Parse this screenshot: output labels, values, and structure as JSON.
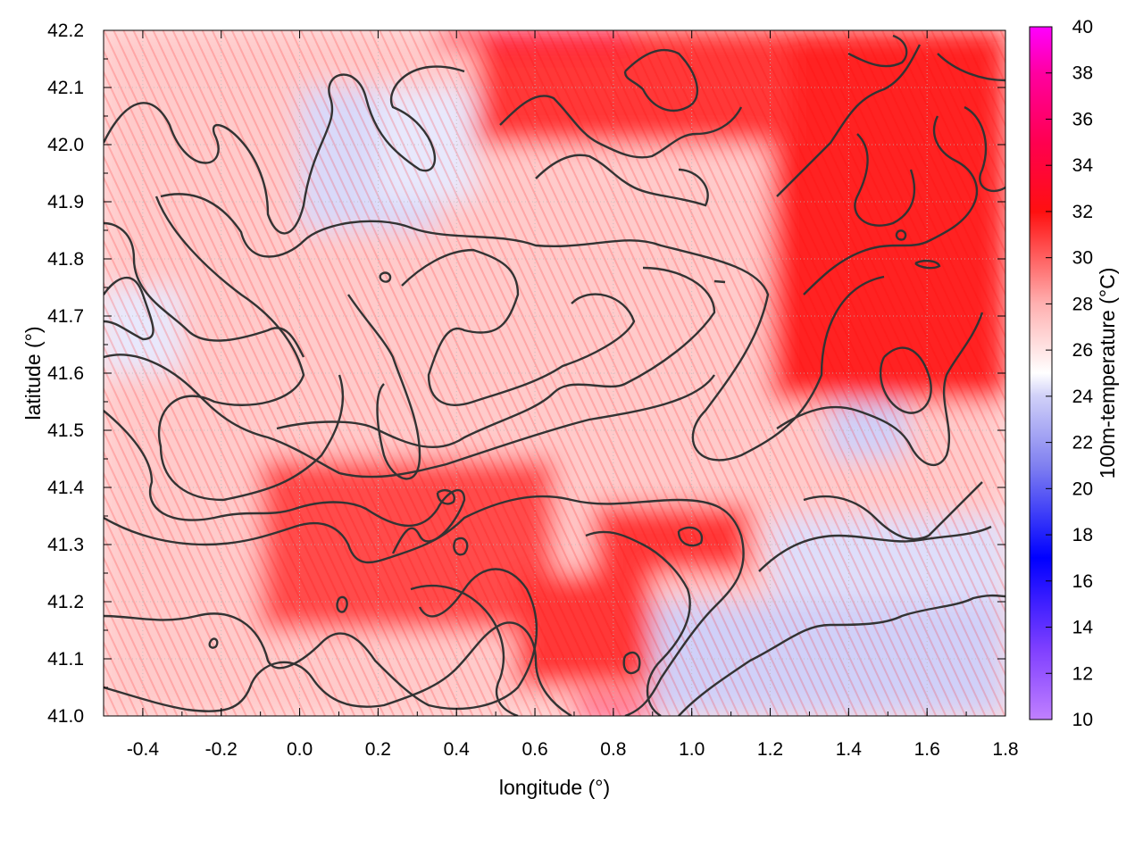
{
  "chart_data": {
    "type": "heatmap",
    "xlabel": "longitude (°)",
    "ylabel": "latitude (°)",
    "colorbar_label": "100m-temperature (°C)",
    "xlim": [
      -0.5,
      1.8
    ],
    "ylim": [
      41.0,
      42.2
    ],
    "x_ticks": [
      "-0.4",
      "-0.2",
      "0.0",
      "0.2",
      "0.4",
      "0.6",
      "0.8",
      "1.0",
      "1.2",
      "1.4",
      "1.6",
      "1.8"
    ],
    "x_tick_values": [
      -0.4,
      -0.2,
      0.0,
      0.2,
      0.4,
      0.6,
      0.8,
      1.0,
      1.2,
      1.4,
      1.6,
      1.8
    ],
    "y_ticks": [
      "41.0",
      "41.1",
      "41.2",
      "41.3",
      "41.4",
      "41.5",
      "41.6",
      "41.7",
      "41.8",
      "41.9",
      "42.0",
      "42.1",
      "42.2"
    ],
    "y_tick_values": [
      41.0,
      41.1,
      41.2,
      41.3,
      41.4,
      41.5,
      41.6,
      41.7,
      41.8,
      41.9,
      42.0,
      42.1,
      42.2
    ],
    "colorbar_ticks": [
      "10",
      "12",
      "14",
      "16",
      "18",
      "20",
      "22",
      "24",
      "26",
      "28",
      "30",
      "32",
      "34",
      "36",
      "38",
      "40"
    ],
    "colorbar_values": [
      10,
      12,
      14,
      16,
      18,
      20,
      22,
      24,
      26,
      28,
      30,
      32,
      34,
      36,
      38,
      40
    ],
    "colorbar_range": [
      10,
      40
    ],
    "grid": true,
    "colormap": [
      {
        "value": 10,
        "color": "#c080ff"
      },
      {
        "value": 13,
        "color": "#8040ff"
      },
      {
        "value": 17,
        "color": "#0000ff"
      },
      {
        "value": 21,
        "color": "#8080f0"
      },
      {
        "value": 24,
        "color": "#d0d0f8"
      },
      {
        "value": 25,
        "color": "#ffffff"
      },
      {
        "value": 28,
        "color": "#ffb0b0"
      },
      {
        "value": 32,
        "color": "#ff1010"
      },
      {
        "value": 35,
        "color": "#ff0050"
      },
      {
        "value": 38,
        "color": "#ff00a0"
      },
      {
        "value": 40,
        "color": "#ff00ff"
      }
    ],
    "field_regions": [
      {
        "lon": -0.5,
        "lat": 41.0,
        "w": 2.3,
        "h": 1.2,
        "temp": 27.0
      },
      {
        "lon": 0.9,
        "lat": 41.0,
        "w": 0.9,
        "h": 0.2,
        "temp": 24.0
      },
      {
        "lon": 1.2,
        "lat": 41.2,
        "w": 0.6,
        "h": 0.15,
        "temp": 24.3
      },
      {
        "lon": 1.2,
        "lat": 41.55,
        "w": 0.6,
        "h": 0.65,
        "temp": 31.5
      },
      {
        "lon": 0.45,
        "lat": 42.0,
        "w": 0.8,
        "h": 0.2,
        "temp": 31.0
      },
      {
        "lon": -0.1,
        "lat": 41.15,
        "w": 0.75,
        "h": 0.3,
        "temp": 30.5
      },
      {
        "lon": 0.55,
        "lat": 41.05,
        "w": 0.35,
        "h": 0.2,
        "temp": 31.0
      },
      {
        "lon": 0.75,
        "lat": 41.25,
        "w": 0.4,
        "h": 0.12,
        "temp": 31.0
      },
      {
        "lon": 0.0,
        "lat": 41.85,
        "w": 0.35,
        "h": 0.25,
        "temp": 24.2
      },
      {
        "lon": 0.2,
        "lat": 41.9,
        "w": 0.25,
        "h": 0.2,
        "temp": 24.5
      },
      {
        "lon": -0.5,
        "lat": 41.6,
        "w": 0.2,
        "h": 0.15,
        "temp": 24.5
      },
      {
        "lon": 1.35,
        "lat": 41.45,
        "w": 0.2,
        "h": 0.1,
        "temp": 24.0
      },
      {
        "lon": 0.7,
        "lat": 41.0,
        "w": 0.2,
        "h": 0.03,
        "temp": 36.0
      },
      {
        "lon": 0.35,
        "lat": 42.17,
        "w": 0.5,
        "h": 0.03,
        "temp": 34.0
      }
    ]
  }
}
